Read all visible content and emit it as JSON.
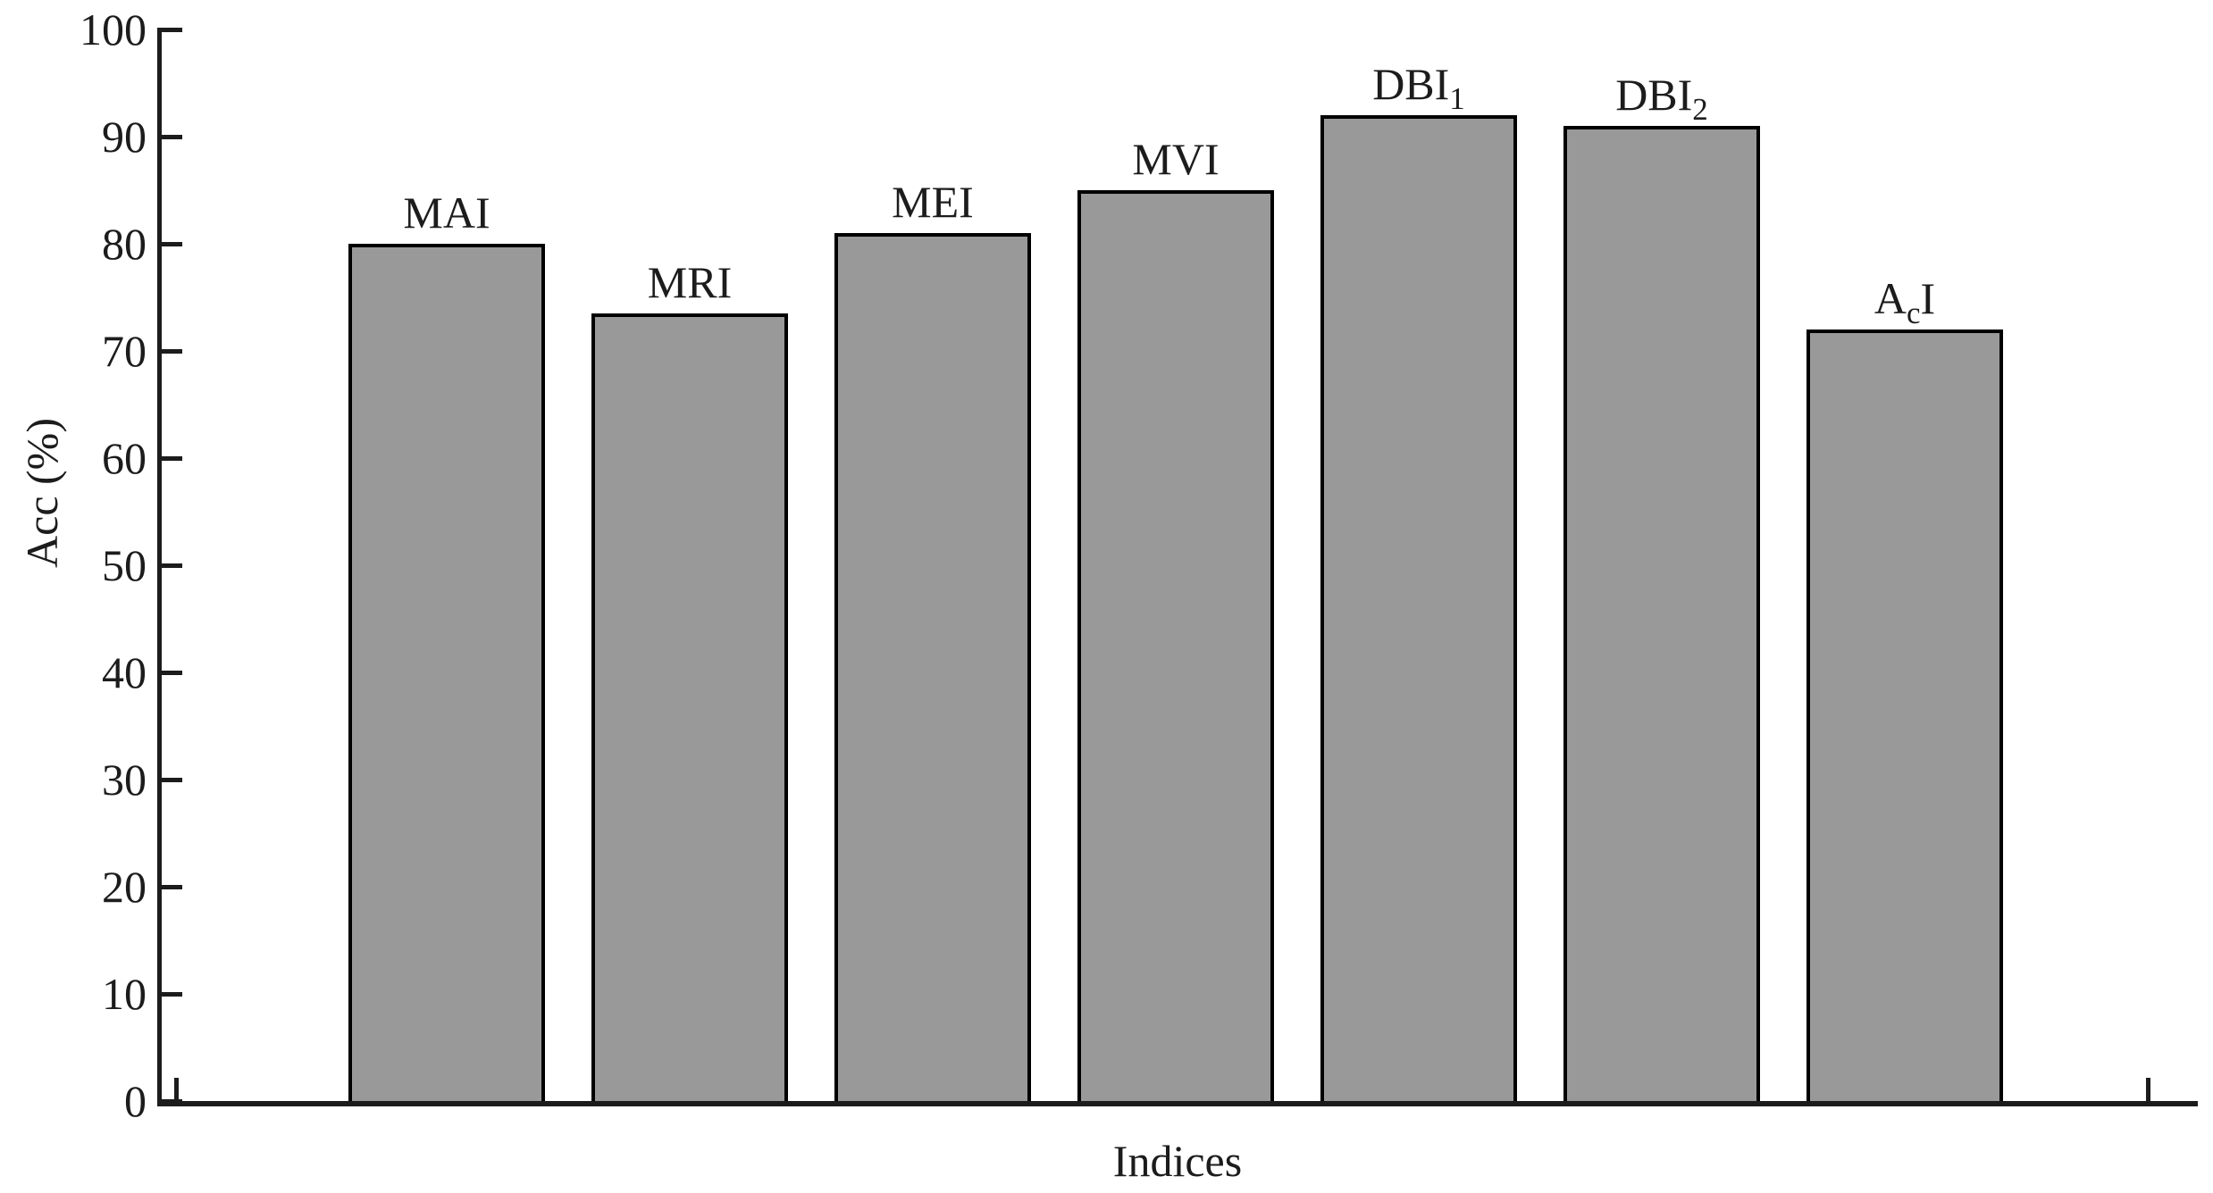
{
  "chart_data": {
    "type": "bar",
    "title": "",
    "xlabel": "Indices",
    "ylabel": "Acc (%)",
    "ylim": [
      0,
      100
    ],
    "yticks": [
      0,
      10,
      20,
      30,
      40,
      50,
      60,
      70,
      80,
      90,
      100
    ],
    "grid": false,
    "legend": "none",
    "categories": [
      "MAI",
      "MRI",
      "MEI",
      "MVI",
      "DBI1",
      "DBI2",
      "AcI"
    ],
    "category_parts": [
      [
        {
          "t": "MAI"
        }
      ],
      [
        {
          "t": "MRI"
        }
      ],
      [
        {
          "t": "MEI"
        }
      ],
      [
        {
          "t": "MVI"
        }
      ],
      [
        {
          "t": "DBI"
        },
        {
          "t": "1",
          "sub": true
        }
      ],
      [
        {
          "t": "DBI"
        },
        {
          "t": "2",
          "sub": true
        }
      ],
      [
        {
          "t": "A"
        },
        {
          "t": "c",
          "sub": true
        },
        {
          "t": "I"
        }
      ]
    ],
    "values": [
      80,
      73.5,
      81,
      85,
      92,
      91,
      72
    ],
    "value_labels_position": "category-name-above-bar",
    "colors": {
      "bar_fill": "#999999",
      "bar_border": "#000000",
      "axis": "#1c1c1c",
      "text": "#1c1c1c",
      "background": "#ffffff"
    }
  }
}
